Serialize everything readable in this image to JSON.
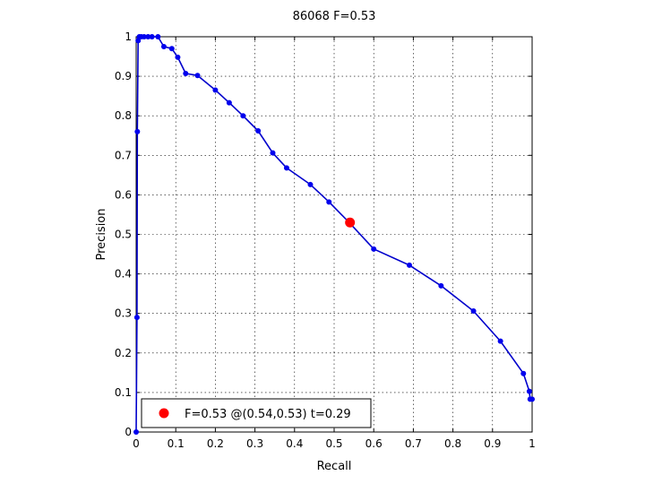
{
  "chart_data": {
    "type": "line",
    "title": "86068 F=0.53",
    "xlabel": "Recall",
    "ylabel": "Precision",
    "xlim": [
      0,
      1
    ],
    "ylim": [
      0,
      1
    ],
    "xticks": [
      0,
      0.1,
      0.2,
      0.3,
      0.4,
      0.5,
      0.6,
      0.7,
      0.8,
      0.9,
      1
    ],
    "yticks": [
      0,
      0.1,
      0.2,
      0.3,
      0.4,
      0.5,
      0.6,
      0.7,
      0.8,
      0.9,
      1
    ],
    "xtick_labels": [
      "0",
      "0.1",
      "0.2",
      "0.3",
      "0.4",
      "0.5",
      "0.6",
      "0.7",
      "0.8",
      "0.9",
      "1"
    ],
    "ytick_labels": [
      "0",
      "0.1",
      "0.2",
      "0.3",
      "0.4",
      "0.5",
      "0.6",
      "0.7",
      "0.8",
      "0.9",
      "1"
    ],
    "grid": true,
    "line_color": "#0000cc",
    "marker_color": "#0000ee",
    "highlight_color": "#ff0000",
    "series": [
      {
        "x": [
          0,
          0.002,
          0.003,
          0.005,
          0.008,
          0.013,
          0.02,
          0.03,
          0.04,
          0.055,
          0.07,
          0.09,
          0.105,
          0.125,
          0.155,
          0.2,
          0.235,
          0.27,
          0.308,
          0.345,
          0.38,
          0.44,
          0.487,
          0.54,
          0.6,
          0.69,
          0.77,
          0.852,
          0.92,
          0.978,
          0.993,
          0.995,
          1
        ],
        "y": [
          0,
          0.29,
          0.76,
          0.99,
          1.0,
          1.0,
          1.0,
          1.0,
          1.0,
          1.0,
          0.975,
          0.97,
          0.948,
          0.907,
          0.902,
          0.865,
          0.833,
          0.8,
          0.762,
          0.706,
          0.668,
          0.626,
          0.582,
          0.528,
          0.463,
          0.422,
          0.37,
          0.306,
          0.23,
          0.148,
          0.103,
          0.083,
          0.083
        ]
      }
    ],
    "highlight_point": {
      "x": 0.54,
      "y": 0.53
    },
    "legend": {
      "position": "bottom-left",
      "text": "F=0.53 @(0.54,0.53) t=0.29"
    }
  }
}
